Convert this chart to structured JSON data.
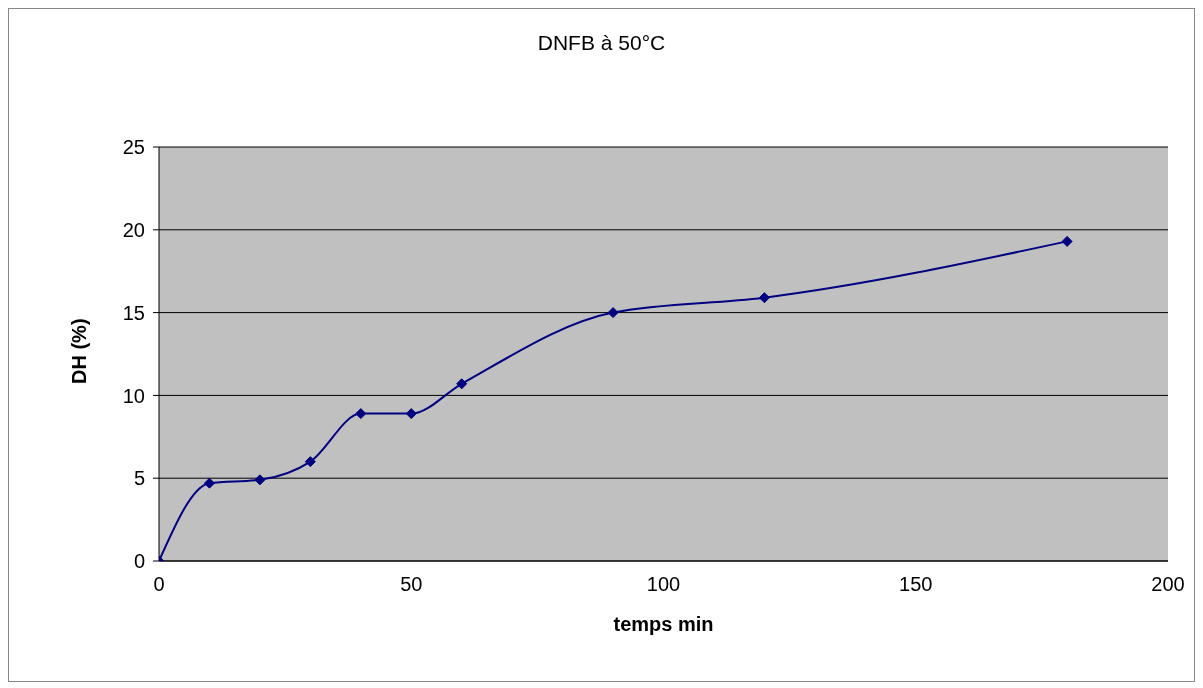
{
  "chart_data": {
    "type": "line",
    "title": "DNFB à 50°C",
    "xlabel": "temps min",
    "ylabel": "DH (%)",
    "x": [
      0,
      10,
      20,
      30,
      40,
      50,
      60,
      90,
      120,
      180
    ],
    "series": [
      {
        "color": "#000080",
        "values": [
          0,
          4.7,
          4.9,
          6,
          8.9,
          8.9,
          10.7,
          15,
          15.9,
          19.3
        ]
      }
    ],
    "xlim": [
      0,
      200
    ],
    "xticks": [
      0,
      50,
      100,
      150,
      200
    ],
    "ylim": [
      0,
      25
    ],
    "yticks": [
      0,
      5,
      10,
      15,
      20,
      25
    ],
    "grid": "y",
    "legend": false,
    "marker": "diamond",
    "line_style": "solid"
  }
}
